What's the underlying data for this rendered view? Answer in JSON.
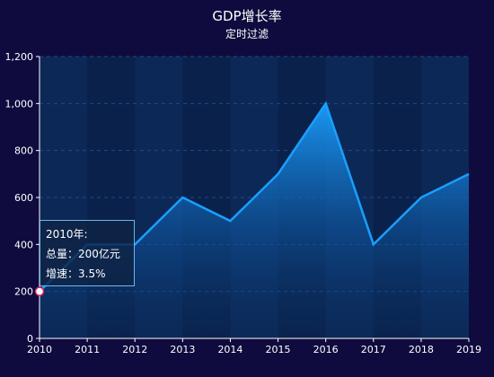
{
  "title": "GDP增长率",
  "subtitle": "定时过滤",
  "chart_data": {
    "type": "area",
    "title": "GDP增长率",
    "subtitle": "定时过滤",
    "categories": [
      "2010",
      "2011",
      "2012",
      "2013",
      "2014",
      "2015",
      "2016",
      "2017",
      "2018",
      "2019"
    ],
    "values": [
      200,
      400,
      400,
      600,
      500,
      700,
      1000,
      400,
      600,
      700
    ],
    "ylim": [
      0,
      1200
    ],
    "yticks": [
      "0",
      "200",
      "400",
      "600",
      "800",
      "1,000",
      "1,200"
    ],
    "ytick_values": [
      0,
      200,
      400,
      600,
      800,
      1000,
      1200
    ],
    "grid": true,
    "line_color": "#1a9fff",
    "area_gradient": [
      "#1a9fff",
      "#0a2e5c"
    ],
    "background": "#0f0b3e"
  },
  "tooltip": {
    "year_line": "2010年:",
    "total_line": "总量：200亿元",
    "growth_line": "增速：3.5%",
    "active_index": 0
  }
}
